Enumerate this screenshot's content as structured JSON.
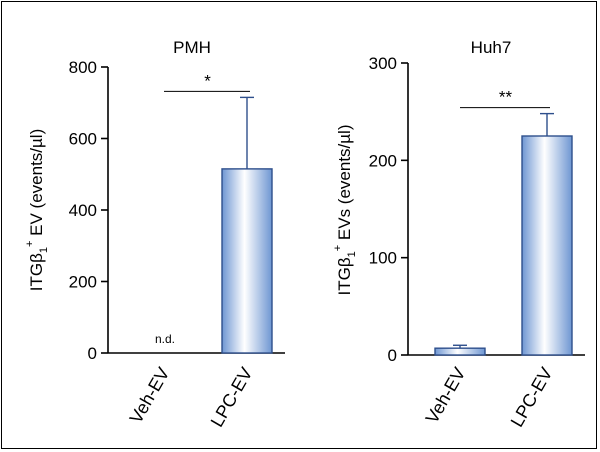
{
  "chart_data": [
    {
      "type": "bar",
      "title": "PMH",
      "categories": [
        "Veh-EV",
        "LPC-EV"
      ],
      "values": [
        null,
        515
      ],
      "errors": [
        null,
        200
      ],
      "ylabel": "ITGβ₁⁺ EV (events/µl)",
      "ylim": [
        0,
        800
      ],
      "yticks": [
        0,
        200,
        400,
        600,
        800
      ],
      "annotations": {
        "missing_label": "n.d.",
        "significance": "*"
      },
      "grid": false
    },
    {
      "type": "bar",
      "title": "Huh7",
      "categories": [
        "Veh-EV",
        "LPC-EV"
      ],
      "values": [
        7,
        225
      ],
      "errors": [
        3,
        23
      ],
      "ylabel": "ITGβ₁⁺ EVs (events/µl)",
      "ylim": [
        0,
        300
      ],
      "yticks": [
        0,
        100,
        200,
        300
      ],
      "annotations": {
        "significance": "**"
      },
      "grid": false
    }
  ],
  "colors": {
    "bar_edge": "#2e4f8c",
    "bar_light": "#ffffff",
    "bar_dark": "#6e96d2",
    "ink": "#000000"
  }
}
